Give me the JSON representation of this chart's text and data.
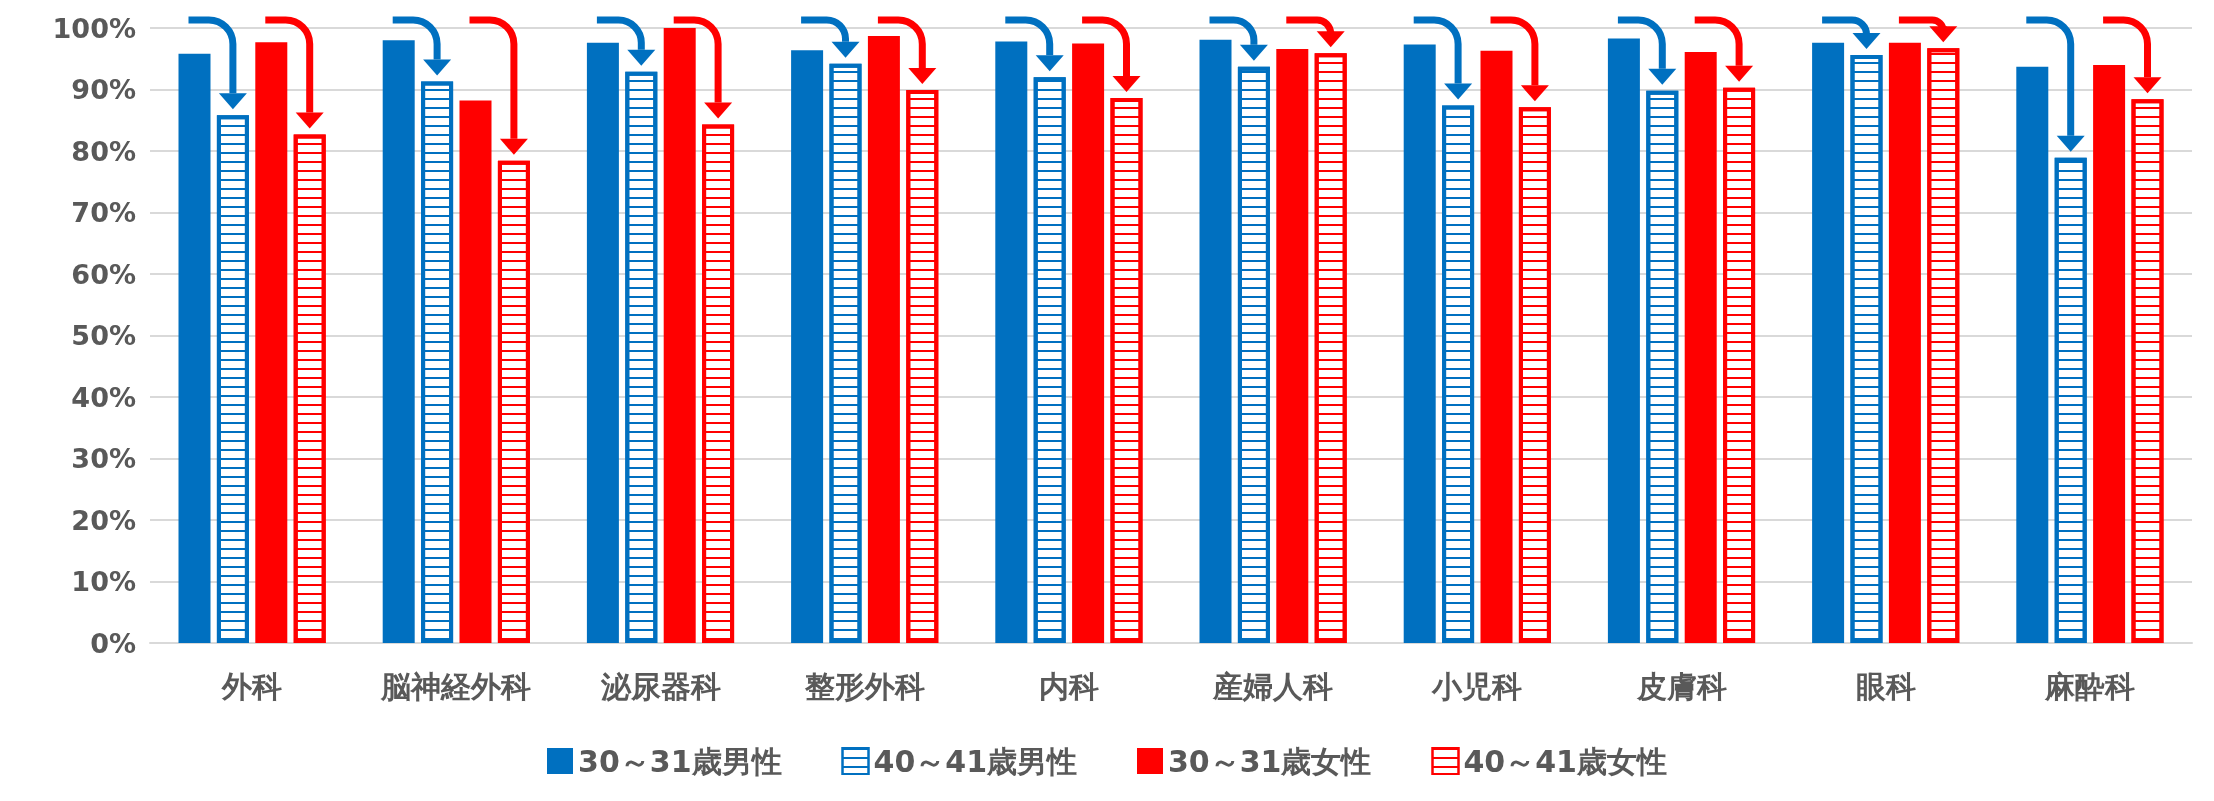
{
  "chart_data": {
    "type": "bar",
    "categories": [
      "外科",
      "脳神経外科",
      "泌尿器科",
      "整形外科",
      "内科",
      "産婦人科",
      "小児科",
      "皮膚科",
      "眼科",
      "麻酔科"
    ],
    "series": [
      {
        "name": "30～31歳男性",
        "color": "#0070c0",
        "values": [
          95.8,
          98.0,
          97.6,
          96.4,
          97.8,
          98.1,
          97.3,
          98.3,
          97.6,
          93.7
        ]
      },
      {
        "name": "40～41歳男性",
        "color": "#0070c0",
        "values": [
          85.8,
          91.3,
          92.9,
          94.2,
          92.0,
          93.7,
          87.4,
          89.8,
          95.6,
          78.9
        ]
      },
      {
        "name": "30～31歳女性",
        "color": "#ff0000",
        "values": [
          97.7,
          88.2,
          100.0,
          98.7,
          97.5,
          96.6,
          96.3,
          96.1,
          97.6,
          94.0
        ]
      },
      {
        "name": "40～41歳女性",
        "color": "#ff0000",
        "values": [
          82.7,
          78.4,
          84.3,
          89.9,
          88.6,
          95.9,
          87.1,
          90.3,
          96.7,
          88.4
        ]
      }
    ],
    "ylim": [
      0,
      100
    ],
    "yticks": [
      {
        "value": 0,
        "label": "0%"
      },
      {
        "value": 10,
        "label": "10%"
      },
      {
        "value": 20,
        "label": "20%"
      },
      {
        "value": 30,
        "label": "30%"
      },
      {
        "value": 40,
        "label": "40%"
      },
      {
        "value": 50,
        "label": "50%"
      },
      {
        "value": 60,
        "label": "60%"
      },
      {
        "value": 70,
        "label": "70%"
      },
      {
        "value": 80,
        "label": "80%"
      },
      {
        "value": 90,
        "label": "90%"
      },
      {
        "value": 100,
        "label": "100%"
      }
    ],
    "grid": "y",
    "legend": "bottom"
  }
}
